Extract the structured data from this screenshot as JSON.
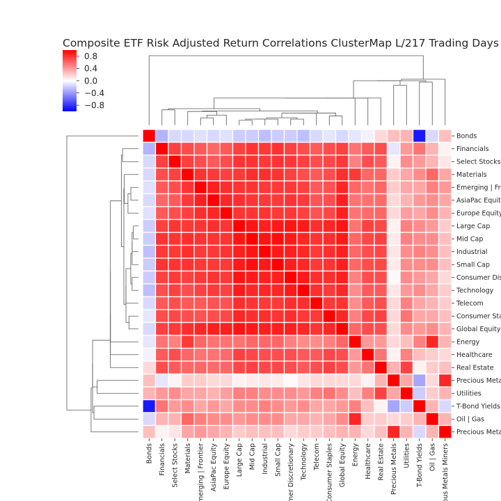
{
  "chart_data": {
    "type": "heatmap",
    "title": "Composite ETF Risk Adjusted Return Correlations ClusterMap L/217 Trading Days",
    "labels": [
      "Bonds",
      "Financials",
      "Select Stocks",
      "Materials",
      "Emerging | Frontier",
      "AsiaPac Equity",
      "Europe Equity",
      "Large Cap",
      "Mid Cap",
      "Industrial",
      "Small Cap",
      "Consumer Discretionary",
      "Technology",
      "Telecom",
      "Consumer Staples",
      "Global Equity",
      "Energy",
      "Healthcare",
      "Real Estate",
      "Precious Metals",
      "Utilities",
      "T-Bond Yields",
      "Oil | Gas",
      "Precious Metals Miners"
    ],
    "colorbar": {
      "ticks": [
        0.8,
        0.4,
        0.0,
        -0.4,
        -0.8
      ],
      "tick_labels": [
        "0.8",
        "0.4",
        "0.0",
        "−0.4",
        "−0.8"
      ],
      "vmin": -1.0,
      "vmax": 1.0,
      "colors": [
        "#0000ff",
        "#ffffff",
        "#ff0000"
      ]
    },
    "matrix": [
      [
        1.0,
        -0.3,
        -0.15,
        -0.15,
        -0.12,
        -0.15,
        -0.12,
        -0.2,
        -0.2,
        -0.25,
        -0.2,
        -0.2,
        -0.25,
        -0.15,
        -0.1,
        -0.15,
        -0.1,
        -0.05,
        0.15,
        0.25,
        0.3,
        -0.9,
        -0.15,
        0.25
      ],
      [
        -0.3,
        1.0,
        0.75,
        0.7,
        0.65,
        0.6,
        0.65,
        0.75,
        0.8,
        0.78,
        0.8,
        0.75,
        0.7,
        0.65,
        0.7,
        0.75,
        0.55,
        0.65,
        0.7,
        -0.1,
        0.4,
        0.55,
        0.3,
        0.05
      ],
      [
        -0.15,
        0.75,
        1.0,
        0.75,
        0.7,
        0.65,
        0.7,
        0.8,
        0.8,
        0.78,
        0.8,
        0.78,
        0.75,
        0.7,
        0.72,
        0.78,
        0.5,
        0.7,
        0.65,
        0.05,
        0.45,
        0.4,
        0.3,
        0.1
      ],
      [
        -0.15,
        0.7,
        0.75,
        1.0,
        0.8,
        0.78,
        0.75,
        0.78,
        0.82,
        0.82,
        0.8,
        0.75,
        0.7,
        0.65,
        0.7,
        0.82,
        0.78,
        0.6,
        0.6,
        0.2,
        0.35,
        0.45,
        0.6,
        0.35
      ],
      [
        -0.12,
        0.65,
        0.7,
        0.8,
        1.0,
        0.88,
        0.82,
        0.8,
        0.8,
        0.78,
        0.78,
        0.78,
        0.75,
        0.65,
        0.68,
        0.85,
        0.6,
        0.55,
        0.6,
        0.2,
        0.35,
        0.35,
        0.5,
        0.4
      ],
      [
        -0.15,
        0.6,
        0.65,
        0.78,
        0.88,
        1.0,
        0.85,
        0.82,
        0.8,
        0.78,
        0.78,
        0.8,
        0.78,
        0.68,
        0.7,
        0.88,
        0.55,
        0.55,
        0.58,
        0.15,
        0.3,
        0.4,
        0.45,
        0.35
      ],
      [
        -0.12,
        0.65,
        0.7,
        0.75,
        0.82,
        0.85,
        1.0,
        0.8,
        0.8,
        0.8,
        0.78,
        0.78,
        0.75,
        0.68,
        0.72,
        0.88,
        0.55,
        0.58,
        0.6,
        0.15,
        0.38,
        0.35,
        0.45,
        0.3
      ],
      [
        -0.2,
        0.75,
        0.8,
        0.78,
        0.8,
        0.82,
        0.8,
        1.0,
        0.92,
        0.88,
        0.9,
        0.92,
        0.9,
        0.82,
        0.85,
        0.92,
        0.55,
        0.75,
        0.72,
        0.05,
        0.5,
        0.45,
        0.4,
        0.2
      ],
      [
        -0.2,
        0.8,
        0.8,
        0.82,
        0.8,
        0.8,
        0.8,
        0.92,
        1.0,
        0.92,
        0.95,
        0.9,
        0.85,
        0.8,
        0.82,
        0.9,
        0.6,
        0.72,
        0.75,
        0.08,
        0.5,
        0.45,
        0.45,
        0.25
      ],
      [
        -0.25,
        0.78,
        0.78,
        0.82,
        0.78,
        0.78,
        0.8,
        0.88,
        0.92,
        1.0,
        0.9,
        0.88,
        0.85,
        0.78,
        0.82,
        0.88,
        0.6,
        0.7,
        0.72,
        0.1,
        0.45,
        0.5,
        0.45,
        0.25
      ],
      [
        -0.2,
        0.8,
        0.8,
        0.8,
        0.78,
        0.78,
        0.78,
        0.9,
        0.95,
        0.9,
        1.0,
        0.88,
        0.85,
        0.78,
        0.8,
        0.88,
        0.6,
        0.7,
        0.72,
        0.08,
        0.45,
        0.45,
        0.45,
        0.25
      ],
      [
        -0.2,
        0.75,
        0.78,
        0.75,
        0.78,
        0.8,
        0.78,
        0.92,
        0.9,
        0.88,
        0.88,
        1.0,
        0.9,
        0.82,
        0.82,
        0.88,
        0.5,
        0.7,
        0.7,
        0.02,
        0.45,
        0.4,
        0.35,
        0.15
      ],
      [
        -0.25,
        0.7,
        0.75,
        0.7,
        0.75,
        0.78,
        0.75,
        0.9,
        0.85,
        0.85,
        0.85,
        0.9,
        1.0,
        0.82,
        0.78,
        0.85,
        0.45,
        0.65,
        0.65,
        0.1,
        0.4,
        0.45,
        0.35,
        0.2
      ],
      [
        -0.15,
        0.65,
        0.7,
        0.65,
        0.65,
        0.68,
        0.68,
        0.82,
        0.8,
        0.78,
        0.78,
        0.82,
        0.82,
        1.0,
        0.78,
        0.8,
        0.45,
        0.65,
        0.7,
        0.15,
        0.5,
        0.35,
        0.3,
        0.2
      ],
      [
        -0.1,
        0.7,
        0.72,
        0.7,
        0.68,
        0.7,
        0.72,
        0.85,
        0.82,
        0.82,
        0.8,
        0.82,
        0.78,
        0.78,
        1.0,
        0.85,
        0.5,
        0.72,
        0.75,
        0.15,
        0.55,
        0.35,
        0.35,
        0.25
      ],
      [
        -0.15,
        0.75,
        0.78,
        0.82,
        0.85,
        0.88,
        0.88,
        0.92,
        0.9,
        0.88,
        0.88,
        0.88,
        0.85,
        0.8,
        0.85,
        1.0,
        0.6,
        0.7,
        0.7,
        0.15,
        0.45,
        0.4,
        0.45,
        0.3
      ],
      [
        -0.1,
        0.55,
        0.5,
        0.78,
        0.6,
        0.55,
        0.55,
        0.55,
        0.6,
        0.6,
        0.6,
        0.5,
        0.45,
        0.45,
        0.5,
        0.6,
        1.0,
        0.4,
        0.4,
        0.15,
        0.25,
        0.5,
        0.85,
        0.3
      ],
      [
        -0.05,
        0.65,
        0.7,
        0.6,
        0.55,
        0.55,
        0.58,
        0.75,
        0.72,
        0.7,
        0.7,
        0.7,
        0.65,
        0.65,
        0.72,
        0.7,
        0.4,
        1.0,
        0.55,
        0.05,
        0.5,
        0.25,
        0.2,
        0.15
      ],
      [
        0.15,
        0.7,
        0.65,
        0.6,
        0.6,
        0.58,
        0.6,
        0.72,
        0.75,
        0.72,
        0.72,
        0.7,
        0.65,
        0.7,
        0.75,
        0.7,
        0.4,
        0.55,
        1.0,
        0.3,
        0.75,
        0.05,
        0.2,
        0.25
      ],
      [
        0.25,
        -0.1,
        0.05,
        0.2,
        0.2,
        0.15,
        0.15,
        0.05,
        0.08,
        0.1,
        0.08,
        0.02,
        0.1,
        0.15,
        0.15,
        0.15,
        0.15,
        0.05,
        0.3,
        1.0,
        0.35,
        -0.35,
        0.15,
        0.85
      ],
      [
        0.3,
        0.4,
        0.45,
        0.35,
        0.35,
        0.3,
        0.38,
        0.5,
        0.5,
        0.45,
        0.45,
        0.45,
        0.4,
        0.5,
        0.55,
        0.45,
        0.25,
        0.5,
        0.75,
        0.35,
        1.0,
        -0.2,
        0.2,
        0.3
      ],
      [
        -0.9,
        0.55,
        0.4,
        0.45,
        0.35,
        0.4,
        0.35,
        0.45,
        0.45,
        0.5,
        0.45,
        0.4,
        0.45,
        0.35,
        0.35,
        0.4,
        0.5,
        0.25,
        0.05,
        -0.35,
        -0.2,
        1.0,
        0.3,
        -0.15
      ],
      [
        -0.15,
        0.3,
        0.3,
        0.6,
        0.5,
        0.45,
        0.45,
        0.4,
        0.45,
        0.45,
        0.45,
        0.35,
        0.35,
        0.3,
        0.35,
        0.45,
        0.85,
        0.2,
        0.2,
        0.15,
        0.2,
        0.3,
        1.0,
        0.3
      ],
      [
        0.25,
        0.05,
        0.1,
        0.35,
        0.4,
        0.35,
        0.3,
        0.2,
        0.25,
        0.25,
        0.25,
        0.15,
        0.2,
        0.2,
        0.25,
        0.3,
        0.3,
        0.15,
        0.25,
        0.85,
        0.3,
        -0.15,
        0.3,
        1.0
      ]
    ]
  }
}
